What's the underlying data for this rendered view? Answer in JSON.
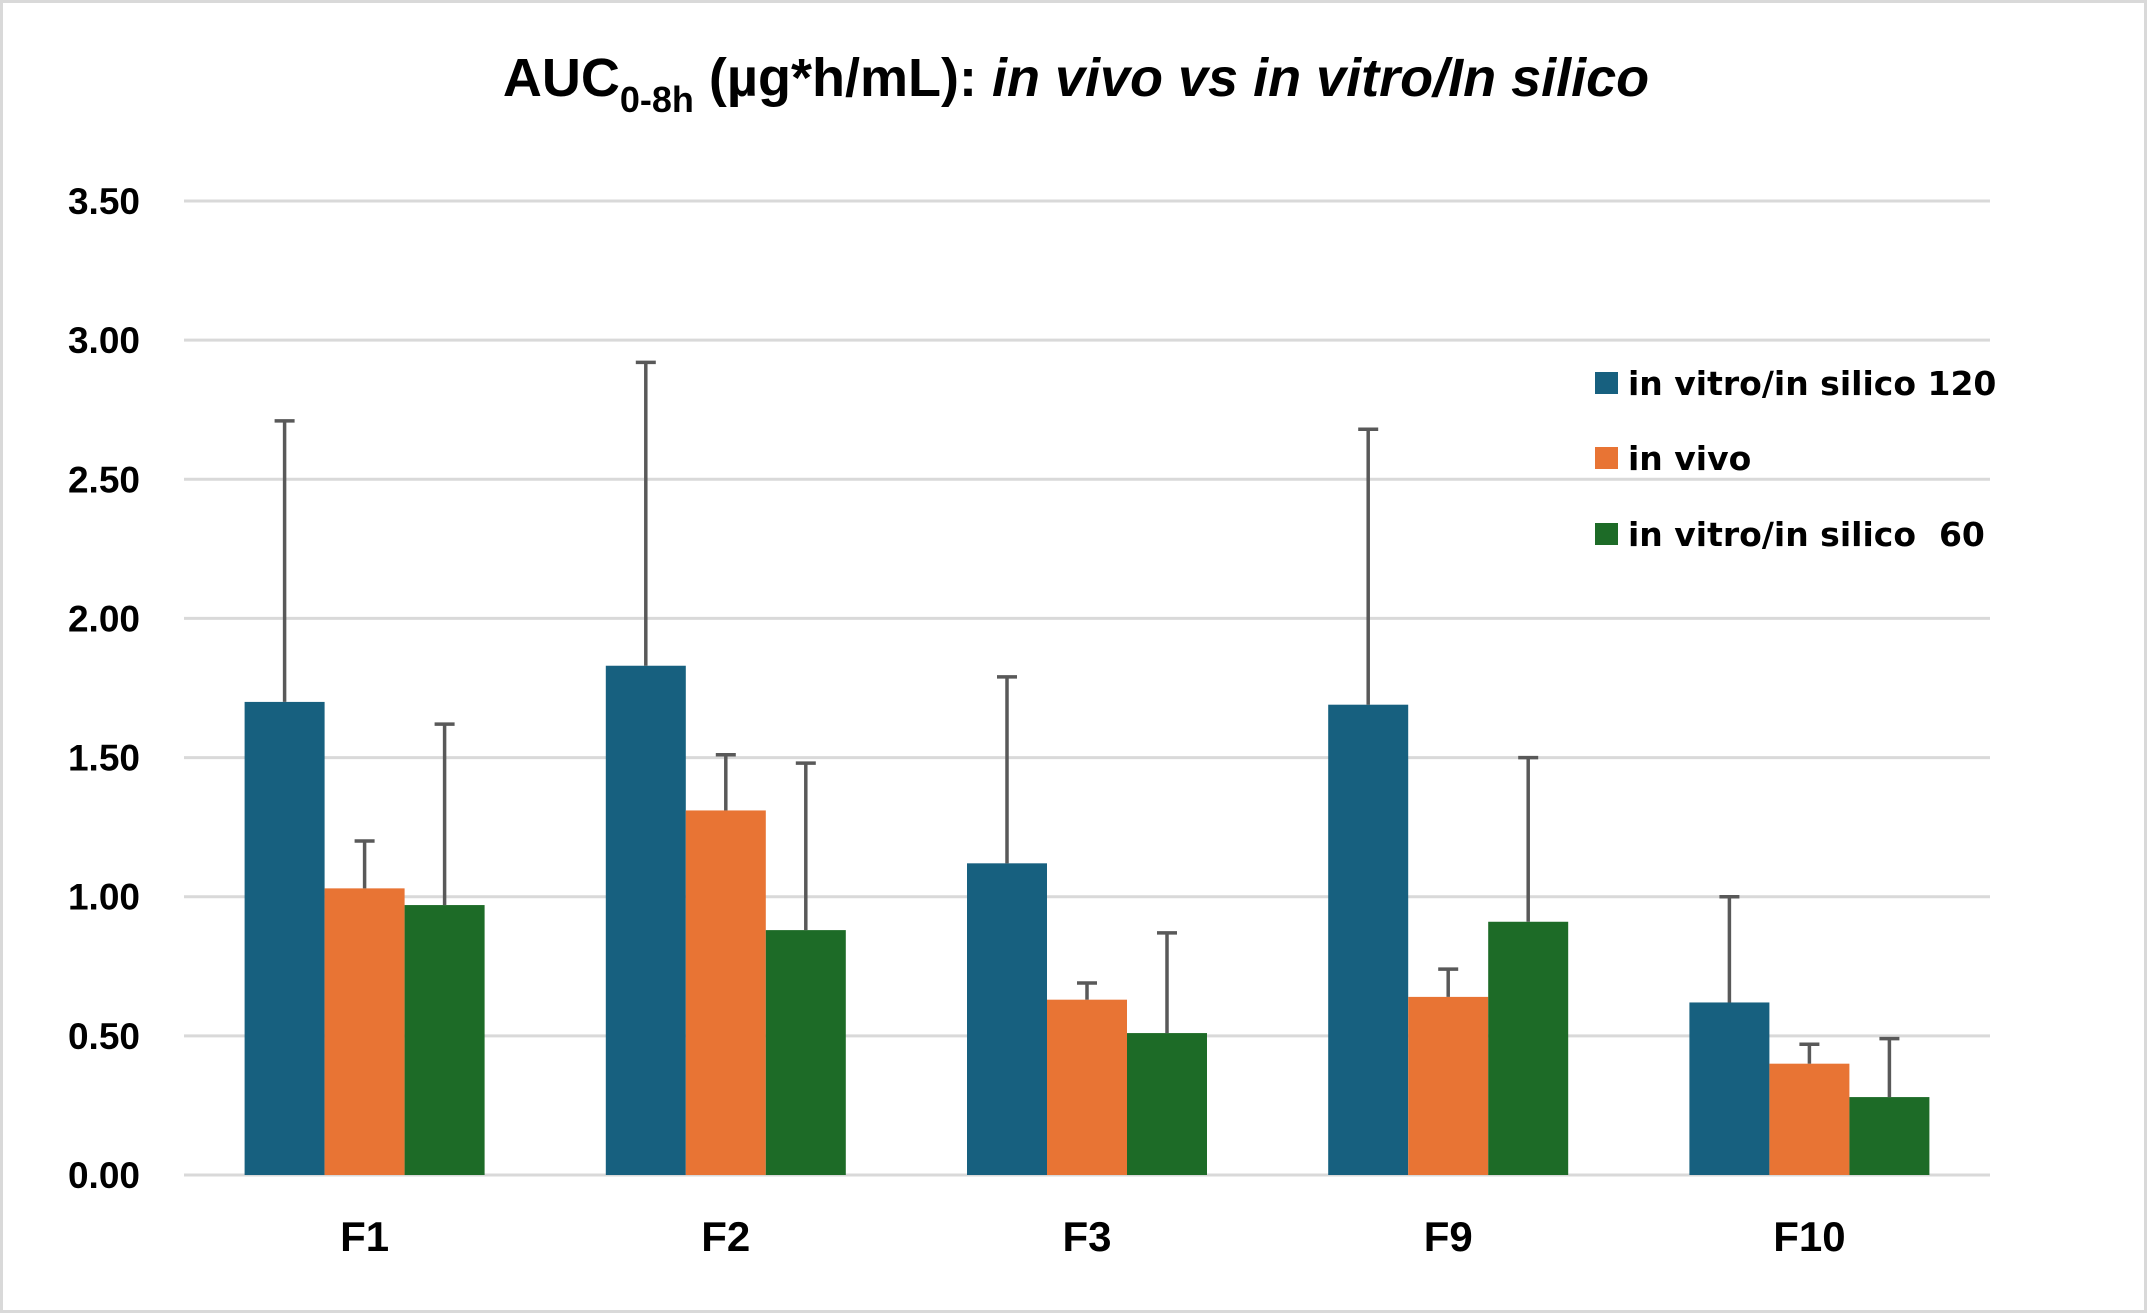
{
  "chart_data": {
    "type": "bar",
    "title": {
      "prefix": "AUC",
      "subscript": "0-8h",
      "units": " (µg*h/mL)",
      "colon": ":",
      "italic_part": " in vivo vs in vitro/In silico"
    },
    "xlabel": "",
    "ylabel": "",
    "categories": [
      "F1",
      "F2",
      "F3",
      "F9",
      "F10"
    ],
    "ylim": [
      0,
      3.5
    ],
    "yticks": [
      "0.00",
      "0.50",
      "1.00",
      "1.50",
      "2.00",
      "2.50",
      "3.00",
      "3.50"
    ],
    "ytick_values": [
      0,
      0.5,
      1.0,
      1.5,
      2.0,
      2.5,
      3.0,
      3.5
    ],
    "grid": true,
    "legend_position": "top-right",
    "series": [
      {
        "name": "in vitro/in silico 120",
        "color": "#17607f",
        "values": [
          1.7,
          1.83,
          1.12,
          1.69,
          0.62
        ],
        "error_upper": [
          2.71,
          2.92,
          1.79,
          2.68,
          1.0
        ]
      },
      {
        "name": "in vivo",
        "color": "#e87434",
        "values": [
          1.03,
          1.31,
          0.63,
          0.64,
          0.4
        ],
        "error_upper": [
          1.2,
          1.51,
          0.69,
          0.74,
          0.47
        ]
      },
      {
        "name": "in vitro/in silico  60",
        "color": "#1d6b27",
        "values": [
          0.97,
          0.88,
          0.51,
          0.91,
          0.28
        ],
        "error_upper": [
          1.62,
          1.48,
          0.87,
          1.5,
          0.49
        ]
      }
    ]
  }
}
